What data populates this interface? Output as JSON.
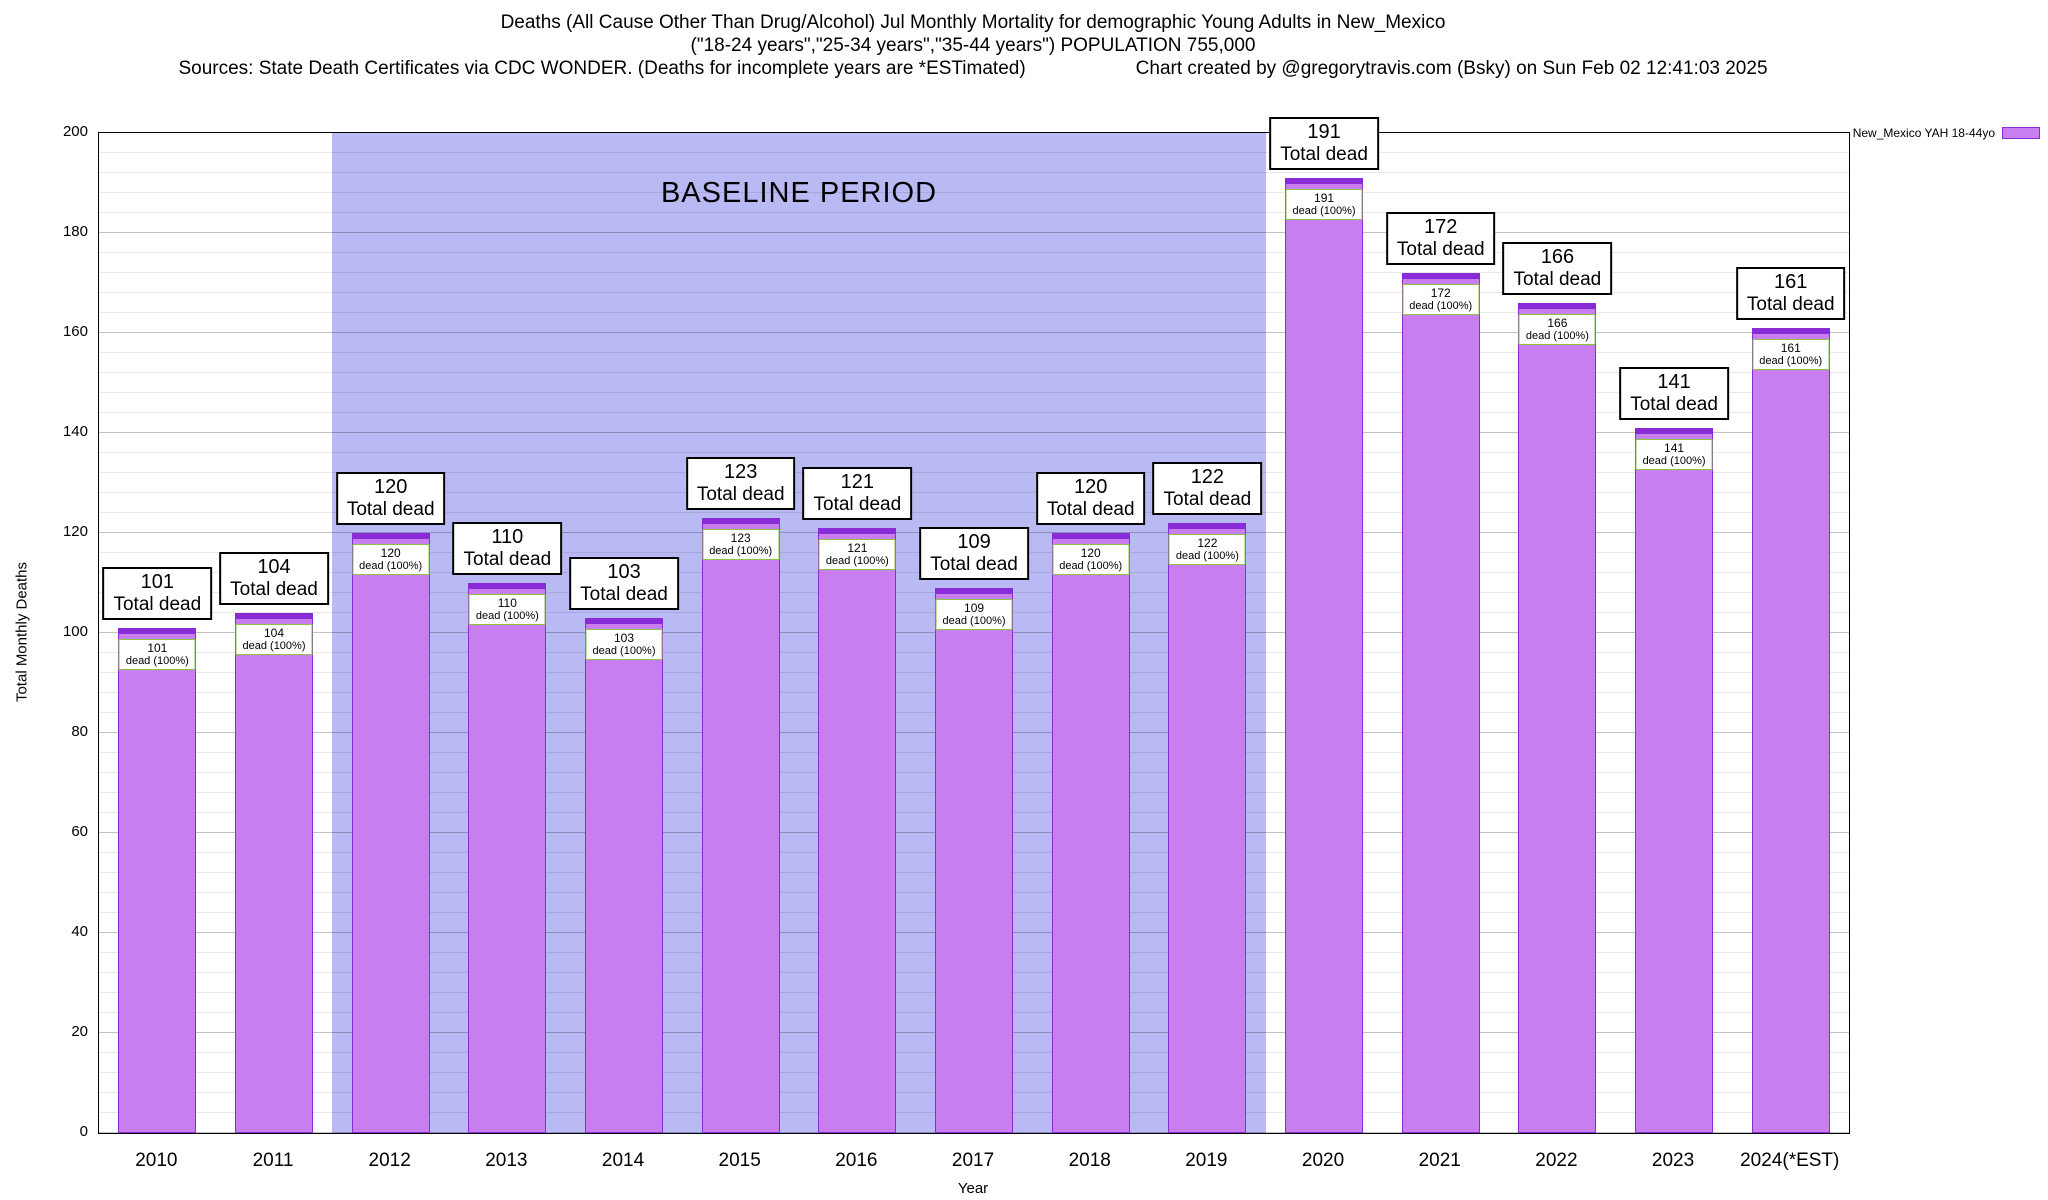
{
  "header": {
    "line1": "Deaths (All Cause Other Than Drug/Alcohol) Jul Monthly Mortality for demographic Young Adults in New_Mexico",
    "line2": "(\"18-24 years\",\"25-34 years\",\"35-44 years\") POPULATION 755,000",
    "sources": "Sources: State Death Certificates via CDC WONDER. (Deaths for incomplete years are *ESTimated)",
    "credit": "Chart created by @gregorytravis.com (Bsky) on Sun Feb 02 12:41:03 2025"
  },
  "legend": {
    "label": "New_Mexico YAH 18-44yo"
  },
  "colors": {
    "bar_fill": "#c97ef0",
    "bar_border": "#8a2bd8",
    "baseline_bg": "#b9b9f3",
    "annotation_border": "#8cc63f"
  },
  "chart_data": {
    "type": "bar",
    "title": "Deaths (All Cause Other Than Drug/Alcohol) Jul Monthly Mortality for demographic Young Adults in New_Mexico",
    "subtitle": "(\"18-24 years\",\"25-34 years\",\"35-44 years\") POPULATION 755,000",
    "categories": [
      "2010",
      "2011",
      "2012",
      "2013",
      "2014",
      "2015",
      "2016",
      "2017",
      "2018",
      "2019",
      "2020",
      "2021",
      "2022",
      "2023",
      "2024(*EST)"
    ],
    "values": [
      101,
      104,
      120,
      110,
      103,
      123,
      121,
      109,
      120,
      122,
      191,
      172,
      166,
      141,
      161
    ],
    "bar_label_big_suffix": "Total dead",
    "bar_label_small_suffix": "dead (100%)",
    "xlabel": "Year",
    "ylabel": "Total Monthly Deaths",
    "ylim": [
      0,
      200
    ],
    "ytick_step": 20,
    "minor_grid_step": 4,
    "grid": true,
    "legend_position": "top-right-outside",
    "baseline_period": {
      "label": "BASELINE PERIOD",
      "start_category": "2012",
      "end_category": "2019",
      "start_index": 2,
      "end_index": 9
    }
  }
}
